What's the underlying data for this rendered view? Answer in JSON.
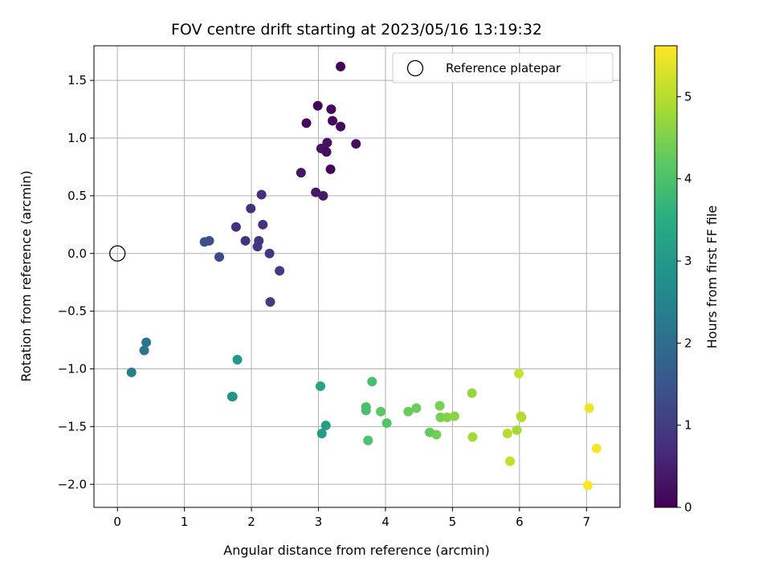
{
  "chart_data": {
    "type": "scatter",
    "title": "FOV centre drift starting at 2023/05/16 13:19:32",
    "xlabel": "Angular distance from reference (arcmin)",
    "ylabel": "Rotation from reference (arcmin)",
    "xlim": [
      -0.35,
      7.5
    ],
    "ylim": [
      -2.2,
      1.8
    ],
    "x_ticks": [
      0,
      1,
      2,
      3,
      4,
      5,
      6,
      7
    ],
    "y_ticks": [
      -2.0,
      -1.5,
      -1.0,
      -0.5,
      0.0,
      0.5,
      1.0,
      1.5
    ],
    "x_tick_labels": [
      "0",
      "1",
      "2",
      "3",
      "4",
      "5",
      "6",
      "7"
    ],
    "y_tick_labels": [
      "−2.0",
      "−1.5",
      "−1.0",
      "−0.5",
      "0.0",
      "0.5",
      "1.0",
      "1.5"
    ],
    "grid": true,
    "legend": {
      "position": "top-right",
      "entries": [
        "Reference platepar"
      ]
    },
    "reference_point": {
      "name": "Reference platepar",
      "x": 0,
      "y": 0
    },
    "colorbar": {
      "label": "Hours from first FF file",
      "min": 0,
      "max": 5.62,
      "ticks": [
        0,
        1,
        2,
        3,
        4,
        5
      ],
      "colormap": "viridis"
    },
    "points": [
      {
        "x": 3.33,
        "y": 1.62,
        "h": 0.05
      },
      {
        "x": 2.99,
        "y": 1.28,
        "h": 0.07
      },
      {
        "x": 3.19,
        "y": 1.25,
        "h": 0.1
      },
      {
        "x": 2.82,
        "y": 1.13,
        "h": 0.12
      },
      {
        "x": 3.21,
        "y": 1.15,
        "h": 0.12
      },
      {
        "x": 3.33,
        "y": 1.1,
        "h": 0.15
      },
      {
        "x": 3.56,
        "y": 0.95,
        "h": 0.2
      },
      {
        "x": 3.13,
        "y": 0.96,
        "h": 0.25
      },
      {
        "x": 3.04,
        "y": 0.91,
        "h": 0.28
      },
      {
        "x": 3.12,
        "y": 0.88,
        "h": 0.22
      },
      {
        "x": 3.18,
        "y": 0.73,
        "h": 0.02
      },
      {
        "x": 2.74,
        "y": 0.7,
        "h": 0.3
      },
      {
        "x": 2.96,
        "y": 0.53,
        "h": 0.35
      },
      {
        "x": 3.07,
        "y": 0.5,
        "h": 0.38
      },
      {
        "x": 2.15,
        "y": 0.51,
        "h": 0.7
      },
      {
        "x": 1.99,
        "y": 0.39,
        "h": 0.75
      },
      {
        "x": 2.17,
        "y": 0.25,
        "h": 0.8
      },
      {
        "x": 1.77,
        "y": 0.23,
        "h": 0.78
      },
      {
        "x": 2.11,
        "y": 0.11,
        "h": 0.85
      },
      {
        "x": 1.91,
        "y": 0.11,
        "h": 0.82
      },
      {
        "x": 2.09,
        "y": 0.06,
        "h": 0.9
      },
      {
        "x": 2.27,
        "y": 0.0,
        "h": 0.88
      },
      {
        "x": 2.42,
        "y": -0.15,
        "h": 0.95
      },
      {
        "x": 2.28,
        "y": -0.42,
        "h": 0.98
      },
      {
        "x": 1.52,
        "y": -0.03,
        "h": 1.25
      },
      {
        "x": 1.3,
        "y": 0.1,
        "h": 1.4
      },
      {
        "x": 1.37,
        "y": 0.11,
        "h": 1.35
      },
      {
        "x": 0.43,
        "y": -0.77,
        "h": 2.15
      },
      {
        "x": 0.4,
        "y": -0.84,
        "h": 2.2
      },
      {
        "x": 0.21,
        "y": -1.03,
        "h": 2.35
      },
      {
        "x": 1.79,
        "y": -0.92,
        "h": 2.95
      },
      {
        "x": 1.71,
        "y": -1.24,
        "h": 2.85
      },
      {
        "x": 1.72,
        "y": -1.24,
        "h": 2.9
      },
      {
        "x": 3.03,
        "y": -1.15,
        "h": 3.25
      },
      {
        "x": 3.11,
        "y": -1.49,
        "h": 3.15
      },
      {
        "x": 3.05,
        "y": -1.56,
        "h": 3.1
      },
      {
        "x": 3.8,
        "y": -1.11,
        "h": 3.9
      },
      {
        "x": 3.71,
        "y": -1.33,
        "h": 3.95
      },
      {
        "x": 3.71,
        "y": -1.36,
        "h": 3.95
      },
      {
        "x": 3.74,
        "y": -1.62,
        "h": 4.0
      },
      {
        "x": 3.93,
        "y": -1.37,
        "h": 4.2
      },
      {
        "x": 4.02,
        "y": -1.47,
        "h": 4.05
      },
      {
        "x": 4.34,
        "y": -1.37,
        "h": 4.3
      },
      {
        "x": 4.46,
        "y": -1.34,
        "h": 4.35
      },
      {
        "x": 4.66,
        "y": -1.55,
        "h": 4.25
      },
      {
        "x": 4.76,
        "y": -1.57,
        "h": 4.4
      },
      {
        "x": 4.81,
        "y": -1.32,
        "h": 4.45
      },
      {
        "x": 4.82,
        "y": -1.42,
        "h": 4.45
      },
      {
        "x": 4.92,
        "y": -1.42,
        "h": 4.55
      },
      {
        "x": 5.03,
        "y": -1.41,
        "h": 4.6
      },
      {
        "x": 5.29,
        "y": -1.21,
        "h": 4.7
      },
      {
        "x": 5.3,
        "y": -1.59,
        "h": 4.8
      },
      {
        "x": 5.82,
        "y": -1.56,
        "h": 5.0
      },
      {
        "x": 5.96,
        "y": -1.53,
        "h": 4.85
      },
      {
        "x": 5.99,
        "y": -1.04,
        "h": 5.15
      },
      {
        "x": 6.02,
        "y": -1.41,
        "h": 5.0
      },
      {
        "x": 6.03,
        "y": -1.42,
        "h": 4.95
      },
      {
        "x": 5.86,
        "y": -1.8,
        "h": 5.1
      },
      {
        "x": 7.04,
        "y": -1.34,
        "h": 5.5
      },
      {
        "x": 7.15,
        "y": -1.69,
        "h": 5.55
      },
      {
        "x": 7.02,
        "y": -2.01,
        "h": 5.6
      }
    ]
  }
}
